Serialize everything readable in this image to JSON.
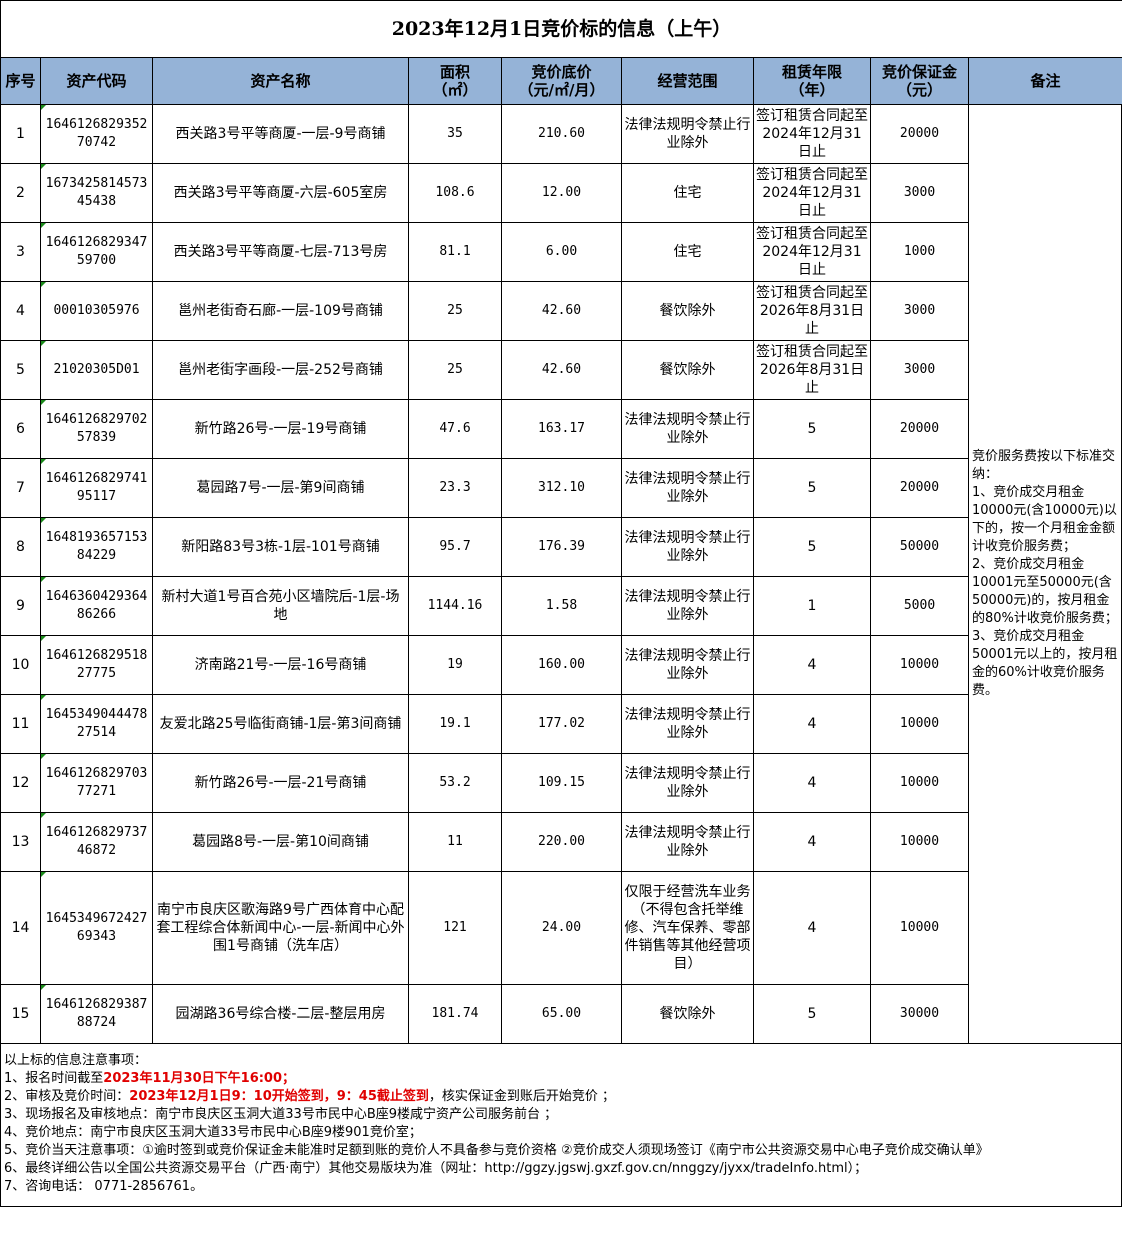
{
  "title": "2023年12月1日竞价标的信息（上午）",
  "headers": [
    "序号",
    "资产代码",
    "资产名称",
    "面积\n（㎡）",
    "竞价底价\n（元/㎡/月）",
    "经营范围",
    "租赁年限\n（年）",
    "竞价保证金\n（元）",
    "备注"
  ],
  "rows": [
    [
      "1",
      "164612682935270742",
      "西关路3号平等商厦-一层-9号商铺",
      "35",
      "210.60",
      "法律法规明令禁止行业除外",
      "签订租赁合同起至2024年12月31日止",
      "20000"
    ],
    [
      "2",
      "167342581457345438",
      "西关路3号平等商厦-六层-605室房",
      "108.6",
      "12.00",
      "住宅",
      "签订租赁合同起至2024年12月31日止",
      "3000"
    ],
    [
      "3",
      "164612682934759700",
      "西关路3号平等商厦-七层-713号房",
      "81.1",
      "6.00",
      "住宅",
      "签订租赁合同起至2024年12月31日止",
      "1000"
    ],
    [
      "4",
      "00010305976",
      "邕州老街奇石廊-一层-109号商铺",
      "25",
      "42.60",
      "餐饮除外",
      "签订租赁合同起至2026年8月31日止",
      "3000"
    ],
    [
      "5",
      "21020305D01",
      "邕州老街字画段-一层-252号商铺",
      "25",
      "42.60",
      "餐饮除外",
      "签订租赁合同起至2026年8月31日止",
      "3000"
    ],
    [
      "6",
      "164612682970257839",
      "新竹路26号-一层-19号商铺",
      "47.6",
      "163.17",
      "法律法规明令禁止行业除外",
      "5",
      "20000"
    ],
    [
      "7",
      "164612682974195117",
      "葛园路7号-一层-第9间商铺",
      "23.3",
      "312.10",
      "法律法规明令禁止行业除外",
      "5",
      "20000"
    ],
    [
      "8",
      "164819365715384229",
      "新阳路83号3栋-1层-101号商铺",
      "95.7",
      "176.39",
      "法律法规明令禁止行业除外",
      "5",
      "50000"
    ],
    [
      "9",
      "164636042936486266",
      "新村大道1号百合苑小区墙院后-1层-场地",
      "1144.16",
      "1.58",
      "法律法规明令禁止行业除外",
      "1",
      "5000"
    ],
    [
      "10",
      "164612682951827775",
      "济南路21号-一层-16号商铺",
      "19",
      "160.00",
      "法律法规明令禁止行业除外",
      "4",
      "10000"
    ],
    [
      "11",
      "164534904447827514",
      "友爱北路25号临街商铺-1层-第3间商铺",
      "19.1",
      "177.02",
      "法律法规明令禁止行业除外",
      "4",
      "10000"
    ],
    [
      "12",
      "164612682970377271",
      "新竹路26号-一层-21号商铺",
      "53.2",
      "109.15",
      "法律法规明令禁止行业除外",
      "4",
      "10000"
    ],
    [
      "13",
      "164612682973746872",
      "葛园路8号-一层-第10间商铺",
      "11",
      "220.00",
      "法律法规明令禁止行业除外",
      "4",
      "10000"
    ],
    [
      "14",
      "164534967242769343",
      "南宁市良庆区歌海路9号广西体育中心配套工程综合体新闻中心-一层-新闻中心外围1号商铺（洗车店）",
      "121",
      "24.00",
      "仅限于经营洗车业务（不得包含托举维修、汽车保养、零部件销售等其他经营项目）",
      "4",
      "10000"
    ],
    [
      "15",
      "164612682938788724",
      "园湖路36号综合楼-二层-整层用房",
      "181.74",
      "65.00",
      "餐饮除外",
      "5",
      "30000"
    ]
  ],
  "remark": "竞价服务费按以下标准交纳：\n1、竞价成交月租金10000元(含10000元)以下的，按一个月租金金额计收竞价服务费；\n2、竞价成交月租金10001元至50000元(含50000元)的，按月租金的80%计收竞价服务费；\n3、竞价成交月租金50001元以上的，按月租金的60%计收竞价服务费。",
  "footer": {
    "heading": "以上标的信息注意事项：",
    "lines": [
      [
        {
          "t": "1、报名时间截至"
        },
        {
          "t": "2023年11月30日下午16:00；",
          "red": true
        }
      ],
      [
        {
          "t": "2、审核及竞价时间："
        },
        {
          "t": "2023年12月1日9：10开始签到，9：45截止签到",
          "red": true
        },
        {
          "t": "，核实保证金到账后开始竞价 ；"
        }
      ],
      [
        {
          "t": "3、现场报名及审核地点：南宁市良庆区玉洞大道33号市民中心B座9楼咸宁资产公司服务前台 ；"
        }
      ],
      [
        {
          "t": "4、竞价地点：南宁市良庆区玉洞大道33号市民中心B座9楼901竞价室；"
        }
      ],
      [
        {
          "t": "5、竞价当天注意事项：①逾时签到或竞价保证金未能准时足额到账的竞价人不具备参与竞价资格 ②竞价成交人须现场签订《南宁市公共资源交易中心电子竞价成交确认单》"
        }
      ],
      [
        {
          "t": "6、最终详细公告以全国公共资源交易平台（广西·南宁）其他交易版块为准（网址：http://ggzy.jgswj.gxzf.gov.cn/nnggzy/jyxx/tradeInfo.html）；"
        }
      ],
      [
        {
          "t": "7、咨询电话： 0771-2856761。"
        }
      ]
    ]
  },
  "colors": {
    "header_bg": "#95b3d7",
    "highlight": "#e00000"
  }
}
